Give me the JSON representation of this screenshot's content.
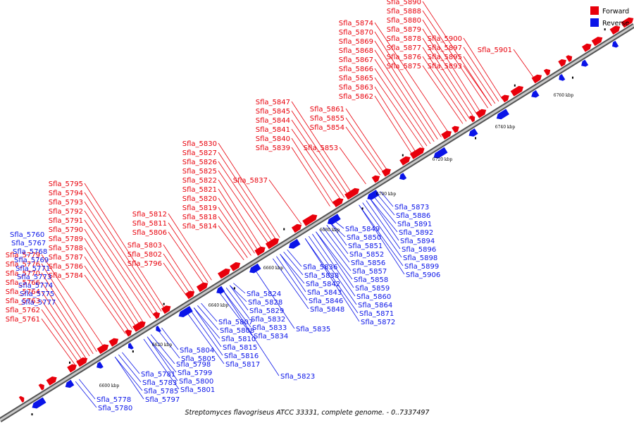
{
  "caption": "Streptomyces flavogriseus ATCC 33331, complete genome. - 0..7337497",
  "legend": [
    {
      "label": "Forward",
      "color": "#e8000b"
    },
    {
      "label": "Reverse",
      "color": "#0a14e8"
    }
  ],
  "colors": {
    "forward": "#e8000b",
    "reverse": "#0a14e8",
    "backbone": "#808080"
  },
  "ticks": [
    "6600 kbp",
    "6620 kbp",
    "6640 kbp",
    "6660 kbp",
    "6680 kbp",
    "6700 kbp",
    "6720 kbp",
    "6740 kbp",
    "6760 kbp"
  ],
  "forward_labels": [
    "Sfla_5761",
    "Sfla_5762",
    "Sfla_5763",
    "Sfla_5764",
    "Sfla_5766",
    "Sfla_5770",
    "Sfla_5776",
    "Sfla_5779",
    "Sfla_5784",
    "Sfla_5786",
    "Sfla_5787",
    "Sfla_5788",
    "Sfla_5789",
    "Sfla_5790",
    "Sfla_5791",
    "Sfla_5792",
    "Sfla_5793",
    "Sfla_5794",
    "Sfla_5795",
    "Sfla_5796",
    "Sfla_5802",
    "Sfla_5803",
    "Sfla_5806",
    "Sfla_5811",
    "Sfla_5812",
    "Sfla_5814",
    "Sfla_5818",
    "Sfla_5819",
    "Sfla_5820",
    "Sfla_5821",
    "Sfla_5822",
    "Sfla_5825",
    "Sfla_5826",
    "Sfla_5827",
    "Sfla_5830",
    "Sfla_5837",
    "Sfla_5839",
    "Sfla_5840",
    "Sfla_5841",
    "Sfla_5844",
    "Sfla_5845",
    "Sfla_5847",
    "Sfla_5853",
    "Sfla_5854",
    "Sfla_5855",
    "Sfla_5861",
    "Sfla_5862",
    "Sfla_5863",
    "Sfla_5865",
    "Sfla_5866",
    "Sfla_5867",
    "Sfla_5868",
    "Sfla_5869",
    "Sfla_5870",
    "Sfla_5874",
    "Sfla_5875",
    "Sfla_5876",
    "Sfla_5877",
    "Sfla_5878",
    "Sfla_5879",
    "Sfla_5880",
    "Sfla_5888",
    "Sfla_5890",
    "Sfla_5893",
    "Sfla_5895",
    "Sfla_5897",
    "Sfla_5900",
    "Sfla_5901"
  ],
  "reverse_labels": [
    "Sfla_5760",
    "Sfla_5767",
    "Sfla_5768",
    "Sfla_5769",
    "Sfla_5771",
    "Sfla_5773",
    "Sfla_5774",
    "Sfla_5775",
    "Sfla_5777",
    "Sfla_5778",
    "Sfla_5780",
    "Sfla_5781",
    "Sfla_5783",
    "Sfla_5785",
    "Sfla_5797",
    "Sfla_5798",
    "Sfla_5799",
    "Sfla_5800",
    "Sfla_5801",
    "Sfla_5804",
    "Sfla_5805",
    "Sfla_5807",
    "Sfla_5808",
    "Sfla_5810",
    "Sfla_5815",
    "Sfla_5816",
    "Sfla_5817",
    "Sfla_5823",
    "Sfla_5824",
    "Sfla_5828",
    "Sfla_5829",
    "Sfla_5832",
    "Sfla_5833",
    "Sfla_5834",
    "Sfla_5835",
    "Sfla_5836",
    "Sfla_5838",
    "Sfla_5842",
    "Sfla_5843",
    "Sfla_5846",
    "Sfla_5848",
    "Sfla_5849",
    "Sfla_5850",
    "Sfla_5851",
    "Sfla_5852",
    "Sfla_5856",
    "Sfla_5857",
    "Sfla_5858",
    "Sfla_5859",
    "Sfla_5860",
    "Sfla_5864",
    "Sfla_5871",
    "Sfla_5872",
    "Sfla_5873",
    "Sfla_5886",
    "Sfla_5891",
    "Sfla_5892",
    "Sfla_5894",
    "Sfla_5896",
    "Sfla_5898",
    "Sfla_5899",
    "Sfla_5906"
  ]
}
